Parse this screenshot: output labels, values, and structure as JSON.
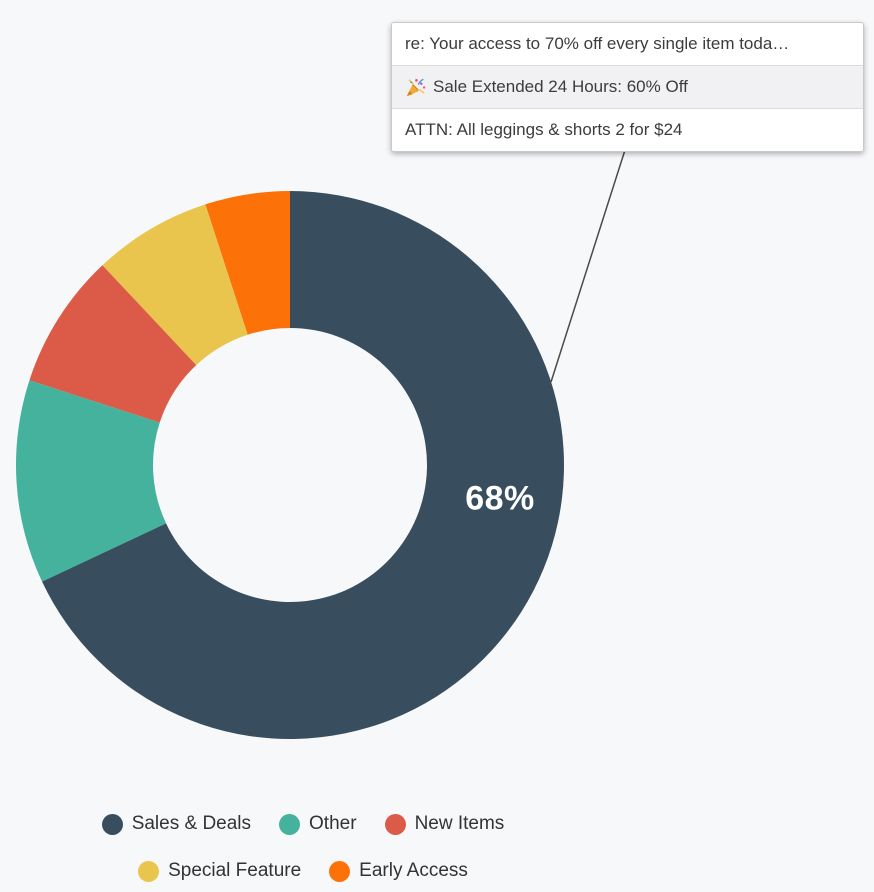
{
  "background_color": "#F7F8FA",
  "tooltip": {
    "rows": [
      {
        "text": "re: Your access to 70% off every single item toda…",
        "highlighted": false
      },
      {
        "icon": "party-popper-icon",
        "icon_char": "🎉",
        "text": "Sale Extended 24 Hours: 60% Off",
        "highlighted": true
      },
      {
        "text": "ATTN: All leggings & shorts 2 for $24",
        "highlighted": false
      }
    ]
  },
  "chart_data": {
    "type": "pie",
    "subtype": "donut",
    "categories": [
      "Sales & Deals",
      "Other",
      "New Items",
      "Special Feature",
      "Early Access"
    ],
    "values": [
      68,
      12,
      8,
      7,
      5
    ],
    "unit": "percent",
    "colors": [
      "#384D5D",
      "#44B29C",
      "#DC5A48",
      "#E9C54D",
      "#FC7108"
    ],
    "center_label": "68%",
    "labeled_segment": "Sales & Deals",
    "legend_position": "bottom",
    "annotation": {
      "type": "callout-tooltip",
      "attached_to": "Sales & Deals",
      "lines": [
        "re: Your access to 70% off every single item toda…",
        "🎉 Sale Extended 24 Hours: 60% Off",
        "ATTN: All leggings & shorts 2 for $24"
      ]
    }
  }
}
